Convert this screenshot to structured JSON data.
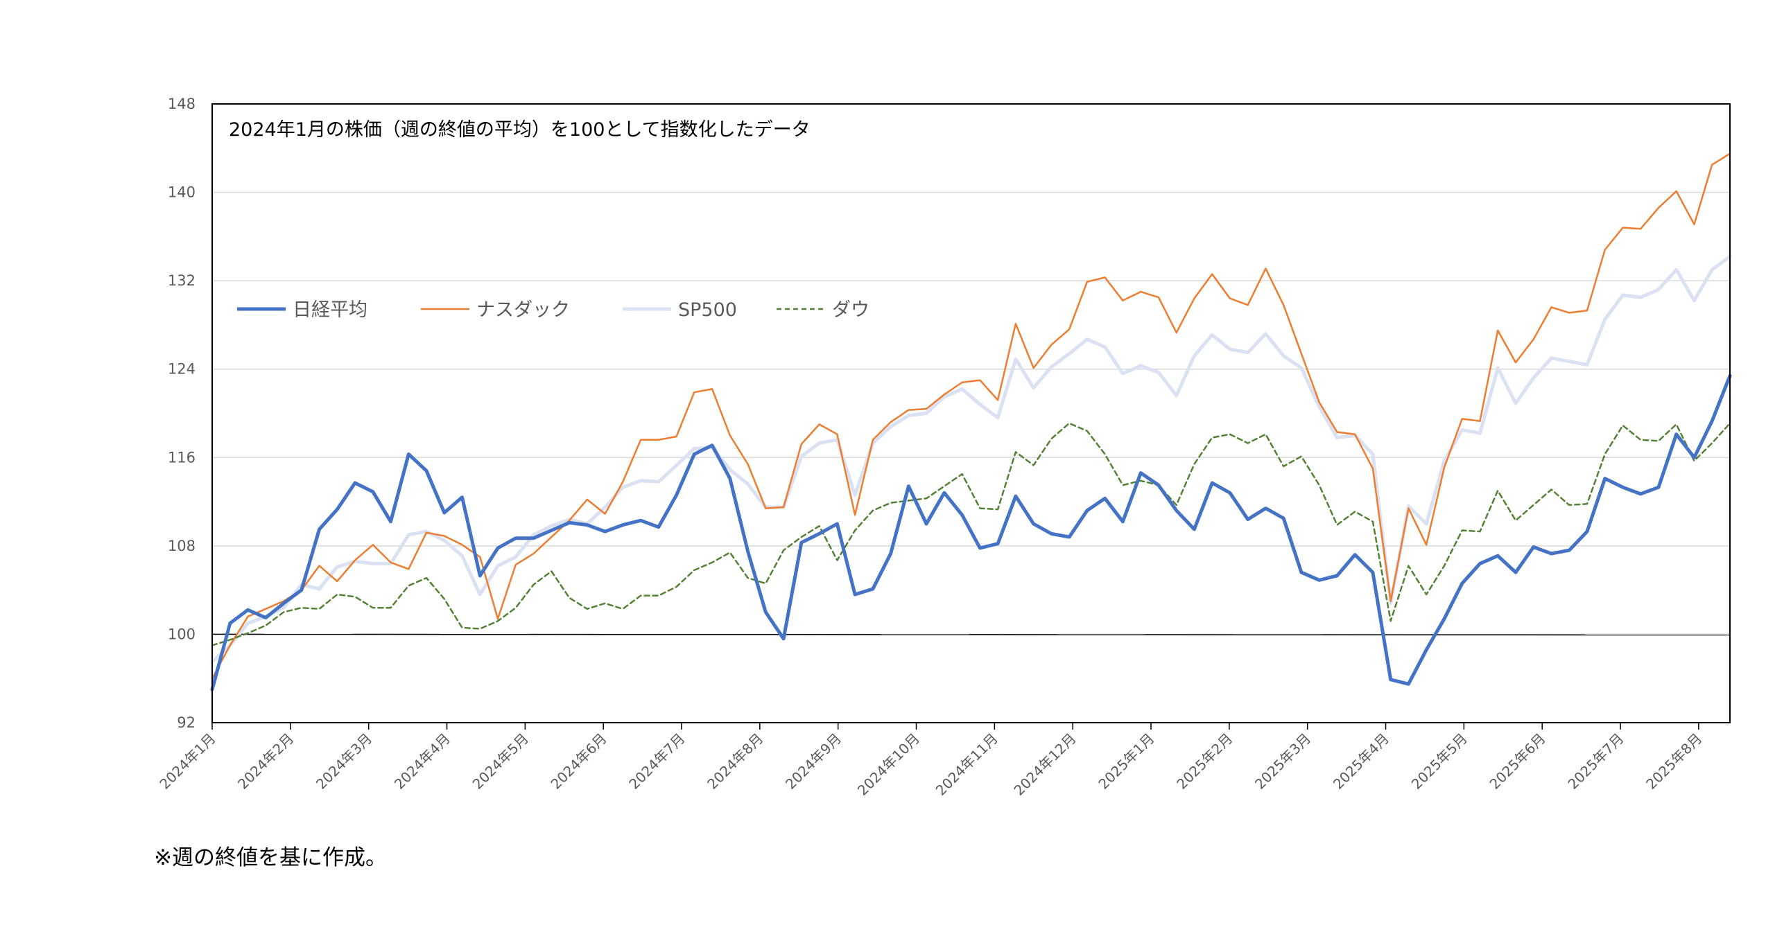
{
  "chart_data": {
    "type": "line",
    "title": "2024年1月の株価（週の終値の平均）を100として指数化したデータ",
    "xlabel": "",
    "ylabel": "",
    "ylim": [
      92,
      148
    ],
    "yticks": [
      92,
      100,
      108,
      116,
      124,
      132,
      140,
      148
    ],
    "grid": true,
    "legend_position": "upper-left",
    "x_tick_labels": [
      "2024年1月",
      "2024年2月",
      "2024年3月",
      "2024年4月",
      "2024年5月",
      "2024年6月",
      "2024年7月",
      "2024年8月",
      "2024年9月",
      "2024年10月",
      "2024年11月",
      "2024年12月",
      "2025年1月",
      "2025年2月",
      "2025年3月",
      "2025年4月",
      "2025年5月",
      "2025年6月",
      "2025年7月",
      "2025年8月"
    ],
    "reference_line": 100,
    "x_unit": "weeks (weekly closing values, first week of 2024年1月 = index 0)",
    "series": [
      {
        "name": "日経平均",
        "color": "#4472C4",
        "style": "solid-thick",
        "values": [
          95,
          101,
          102.2,
          101.5,
          102.8,
          104,
          109.5,
          111.3,
          113.7,
          112.9,
          110.2,
          116.3,
          114.8,
          111,
          112.4,
          105.3,
          107.8,
          108.7,
          108.7,
          109.4,
          110.1,
          109.9,
          109.3,
          109.9,
          110.3,
          109.7,
          112.6,
          116.3,
          117.1,
          114.1,
          107.5,
          102,
          99.6,
          108.3,
          109.1,
          110,
          103.6,
          104.1,
          107.3,
          113.4,
          110,
          112.8,
          110.8,
          107.8,
          108.2,
          112.5,
          110,
          109.1,
          108.8,
          111.2,
          112.3,
          110.2,
          114.6,
          113.5,
          111.2,
          109.5,
          113.7,
          112.8,
          110.4,
          111.4,
          110.5,
          105.6,
          104.9,
          105.3,
          107.2,
          105.6,
          95.9,
          95.5,
          98.6,
          101.4,
          104.6,
          106.4,
          107.1,
          105.6,
          107.9,
          107.3,
          107.6,
          109.3,
          114.1,
          113.3,
          112.7,
          113.3,
          118.1,
          116,
          119.3,
          123.4
        ]
      },
      {
        "name": "ナスダック",
        "color": "#ED7D31",
        "style": "solid-thin",
        "values": [
          96,
          99,
          101.6,
          102.3,
          103,
          104,
          106.2,
          104.8,
          106.7,
          108.1,
          106.5,
          105.9,
          109.2,
          108.9,
          108.1,
          107,
          101.4,
          106.3,
          107.3,
          108.8,
          110.3,
          112.2,
          110.9,
          113.8,
          117.6,
          117.6,
          117.9,
          121.9,
          122.2,
          118,
          115.4,
          111.4,
          111.5,
          117.2,
          119,
          118.1,
          110.8,
          117.6,
          119.2,
          120.3,
          120.4,
          121.7,
          122.8,
          123,
          121.2,
          128.1,
          124.1,
          126.2,
          127.6,
          131.9,
          132.3,
          130.2,
          131,
          130.5,
          127.3,
          130.4,
          132.6,
          130.4,
          129.8,
          133.1,
          129.8,
          125.4,
          121,
          118.3,
          118.1,
          115,
          103,
          111.4,
          108.1,
          115.1,
          119.5,
          119.3,
          127.5,
          124.6,
          126.7,
          129.6,
          129.1,
          129.3,
          134.8,
          136.8,
          136.7,
          138.6,
          140.1,
          137.1,
          142.5,
          143.5
        ]
      },
      {
        "name": "SP500",
        "color": "#D9E1F2",
        "style": "solid-thick",
        "values": [
          97.5,
          99,
          101,
          101.6,
          102.4,
          104.5,
          104.1,
          106.1,
          106.6,
          106.4,
          106.4,
          109,
          109.3,
          108.5,
          107.1,
          103.6,
          106.2,
          107,
          109,
          109.8,
          110.4,
          110,
          111.5,
          113.3,
          113.9,
          113.8,
          115.3,
          116.8,
          116.9,
          114.9,
          113.6,
          111.5,
          111.5,
          116.1,
          117.3,
          117.6,
          112.6,
          117.3,
          118.8,
          119.8,
          120,
          121.5,
          122.2,
          120.8,
          119.6,
          124.9,
          122.3,
          124.2,
          125.4,
          126.7,
          126,
          123.6,
          124.3,
          123.7,
          121.6,
          125.2,
          127.1,
          125.8,
          125.5,
          127.2,
          125.2,
          124.1,
          120.6,
          117.8,
          118,
          116.3,
          102.8,
          111.6,
          110,
          115.7,
          118.5,
          118.2,
          124.1,
          120.9,
          123.2,
          125,
          124.7,
          124.4,
          128.5,
          130.7,
          130.5,
          131.2,
          133,
          130.2,
          133,
          134.2
        ]
      },
      {
        "name": "ダウ",
        "color": "#548235",
        "style": "dashed",
        "values": [
          99,
          99.5,
          100.1,
          100.8,
          102,
          102.4,
          102.3,
          103.6,
          103.4,
          102.4,
          102.4,
          104.4,
          105.1,
          103.2,
          100.6,
          100.5,
          101.2,
          102.4,
          104.5,
          105.7,
          103.3,
          102.3,
          102.8,
          102.3,
          103.5,
          103.5,
          104.3,
          105.8,
          106.5,
          107.4,
          105.1,
          104.6,
          107.6,
          108.8,
          109.8,
          106.7,
          109.4,
          111.2,
          111.9,
          112.1,
          112.3,
          113.4,
          114.5,
          111.4,
          111.3,
          116.5,
          115.3,
          117.7,
          119.1,
          118.4,
          116.3,
          113.5,
          113.9,
          113.5,
          111.7,
          115.4,
          117.8,
          118.1,
          117.3,
          118.1,
          115.2,
          116.1,
          113.5,
          109.9,
          111.1,
          110.2,
          101.2,
          106.2,
          103.6,
          106.2,
          109.4,
          109.3,
          113,
          110.3,
          111.7,
          113.1,
          111.7,
          111.8,
          116.3,
          118.9,
          117.6,
          117.5,
          119,
          115.7,
          117.3,
          119.1
        ]
      }
    ]
  },
  "footnote": "※週の終値を基に作成。"
}
